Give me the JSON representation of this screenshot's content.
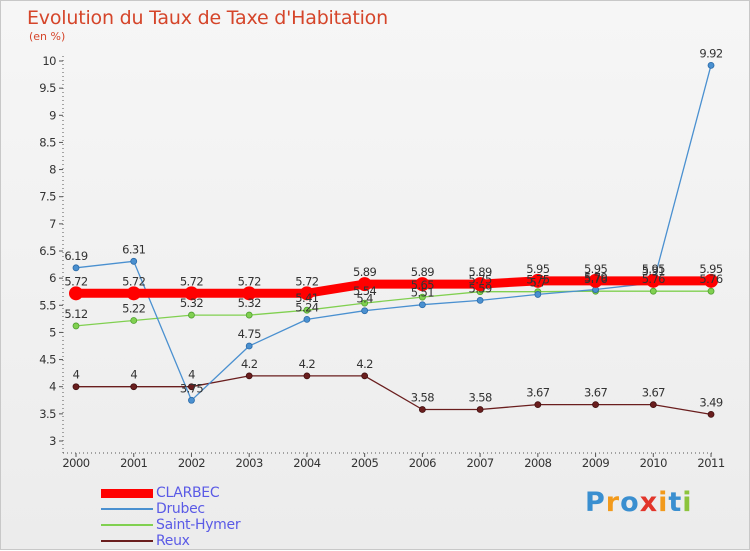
{
  "chart_data": {
    "type": "line",
    "title": "Evolution du Taux de Taxe d'Habitation",
    "subtitle": "(en %)",
    "x": [
      "2000",
      "2001",
      "2002",
      "2003",
      "2004",
      "2005",
      "2006",
      "2007",
      "2008",
      "2009",
      "2010",
      "2011"
    ],
    "ylim": [
      3,
      10
    ],
    "yticks": [
      "3",
      "3.5",
      "4",
      "4.5",
      "5",
      "5.5",
      "6",
      "6.5",
      "7",
      "7.5",
      "8",
      "8.5",
      "9",
      "9.5",
      "10"
    ],
    "grid": false,
    "legend_position": "bottom-left",
    "series": [
      {
        "name": "CLARBEC",
        "color": "#ff0000",
        "values": [
          5.72,
          5.72,
          5.72,
          5.72,
          5.72,
          5.89,
          5.89,
          5.89,
          5.95,
          5.95,
          5.95,
          5.95
        ],
        "labels": [
          "5.72",
          "5.72",
          "5.72",
          "5.72",
          "5.72",
          "5.89",
          "5.89",
          "5.89",
          "5.95",
          "5.95",
          "5.95",
          "5.95"
        ]
      },
      {
        "name": "Drubec",
        "color": "#4a90d0",
        "values": [
          6.19,
          6.31,
          3.75,
          4.75,
          5.24,
          5.4,
          5.51,
          5.59,
          5.7,
          5.79,
          5.91,
          9.92
        ],
        "labels": [
          "6.19",
          "6.31",
          "3.75",
          "4.75",
          "5.24",
          "5.4",
          "5.51",
          "5.59",
          "5.7",
          "5.79",
          "5.91",
          "9.92"
        ]
      },
      {
        "name": "Saint-Hymer",
        "color": "#80d050",
        "values": [
          5.12,
          5.22,
          5.32,
          5.32,
          5.41,
          5.54,
          5.65,
          5.75,
          5.75,
          5.76,
          5.76,
          5.76
        ],
        "labels": [
          "5.12",
          "5.22",
          "5.32",
          "5.32",
          "5.41",
          "5.54",
          "5.65",
          "5.75",
          "5.75",
          "5.76",
          "5.76",
          "5.76"
        ]
      },
      {
        "name": "Reux",
        "color": "#6a1e1e",
        "values": [
          4,
          4,
          4,
          4.2,
          4.2,
          4.2,
          3.58,
          3.58,
          3.67,
          3.67,
          3.67,
          3.49
        ],
        "labels": [
          "4",
          "4",
          "4",
          "4.2",
          "4.2",
          "4.2",
          "3.58",
          "3.58",
          "3.67",
          "3.67",
          "3.67",
          "3.49"
        ]
      }
    ]
  },
  "brand": {
    "letters": [
      "P",
      "r",
      "o",
      "x",
      "i",
      "t",
      "i"
    ],
    "colors": [
      "#3a8fd0",
      "#f29a1c",
      "#3a8fd0",
      "#e2352a",
      "#f29a1c",
      "#3a8fd0",
      "#8cc43c"
    ]
  }
}
